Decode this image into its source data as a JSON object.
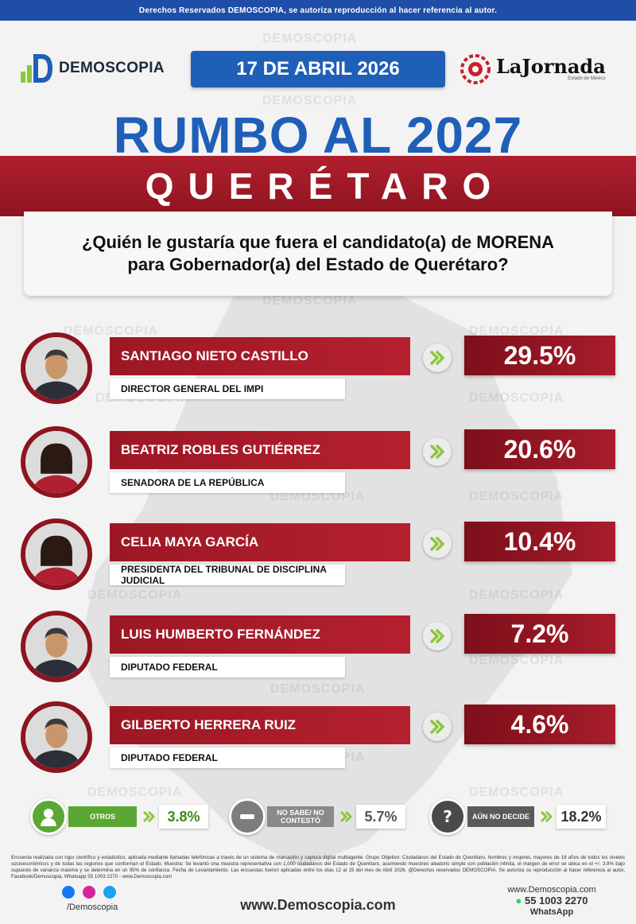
{
  "header": {
    "rights_text": "Derechos Reservados DEMOSCOPIA, se autoriza reproducción al hacer referencia al autor.",
    "demoscopia_logo": "DEMOSCOPIA",
    "date": "17 DE ABRIL 2026",
    "jornada_logo": "LaJornada",
    "jornada_sub": "Estado de México"
  },
  "title": {
    "main": "RUMBO AL 2027",
    "state": "QUERÉTARO",
    "question": "¿Quién le gustaría que fuera el candidato(a) de MORENA para Gobernador(a) del Estado de Querétaro?"
  },
  "watermark": "DEMOSCOPIA",
  "chart_data": {
    "type": "bar",
    "categories": [
      "SANTIAGO NIETO CASTILLO",
      "BEATRIZ ROBLES GUTIÉRREZ",
      "CELIA MAYA GARCÍA",
      "LUIS HUMBERTO FERNÁNDEZ",
      "GILBERTO HERRERA RUIZ",
      "OTROS",
      "NO SABE/ NO CONTESTÓ",
      "AÚN NO DECIDE"
    ],
    "values": [
      29.5,
      20.6,
      10.4,
      7.2,
      4.6,
      3.8,
      5.7,
      18.2
    ],
    "labels": [
      "29.5%",
      "20.6%",
      "10.4%",
      "7.2%",
      "4.6%",
      "3.8%",
      "5.7%",
      "18.2%"
    ],
    "roles": [
      "DIRECTOR GENERAL DEL IMPI",
      "SENADORA DE LA REPÚBLICA",
      "PRESIDENTA DEL TRIBUNAL DE DISCIPLINA JUDICIAL",
      "DIPUTADO FEDERAL",
      "DIPUTADO FEDERAL"
    ],
    "unit": "%"
  },
  "candidates": [
    {
      "name": "SANTIAGO NIETO CASTILLO",
      "role": "DIRECTOR GENERAL DEL IMPI",
      "pct": "29.5%",
      "icon": "person-photo-male"
    },
    {
      "name": "BEATRIZ ROBLES GUTIÉRREZ",
      "role": "SENADORA DE LA REPÚBLICA",
      "pct": "20.6%",
      "icon": "person-photo-female"
    },
    {
      "name": "CELIA MAYA GARCÍA",
      "role": "PRESIDENTA DEL TRIBUNAL DE DISCIPLINA JUDICIAL",
      "pct": "10.4%",
      "icon": "person-photo-female"
    },
    {
      "name": "LUIS HUMBERTO FERNÁNDEZ",
      "role": "DIPUTADO FEDERAL",
      "pct": "7.2%",
      "icon": "person-photo-male"
    },
    {
      "name": "GILBERTO HERRERA RUIZ",
      "role": "DIPUTADO FEDERAL",
      "pct": "4.6%",
      "icon": "person-photo-male"
    }
  ],
  "others": [
    {
      "label": "OTROS",
      "pct": "3.8%",
      "icon": "person-icon",
      "color": "#5aa833"
    },
    {
      "label": "NO SABE/ NO CONTESTÓ",
      "pct": "5.7%",
      "icon": "minus-icon",
      "color": "#7d7d7d"
    },
    {
      "label": "AÚN NO DECIDE",
      "pct": "18.2%",
      "icon": "question-icon",
      "color": "#4a4a4a"
    }
  ],
  "colors": {
    "brand_blue": "#1f5fb8",
    "brand_red": "#9c1724",
    "chevron_green": "#8cc63f"
  },
  "footer": {
    "methodology": "Encuesta realizada con rigor científico y estadístico, aplicada mediante llamadas telefónicas a través de un sistema de marcación y captura digital multiagente. Grupo Objetivo: Ciudadanos del Estado de Querétaro, hombres y mujeres, mayores de 18 años de todos los niveles socioeconómicos y de todas las regiones que conforman el Estado. Muestra: Se levantó una muestra representativa con 1,000 ciudadanos del Estado de Querétaro, asumiendo muestreo aleatorio simple con población infinita, el margen de error se ubica en el +/- 3.8% bajo supuesto de varianza máxima y se determina en un 95% de confianza. Fecha de Levantamiento. Las encuestas fueron aplicadas entre los días 12 al 15 del mes de Abril 2026. @Derechos reservados DEMOSCOPIA. Se autoriza su reproducción al hacer referencia al autor, Facebook/Demoscopia, Whatsapp 55 1003 2270 - www.Demoscopia.com",
    "handle": "/Demoscopia",
    "website": "www.Demoscopia.com",
    "contact_site": "www.Demoscopia.com",
    "phone": "55 1003 2270",
    "whatsapp": "WhatsApp"
  }
}
